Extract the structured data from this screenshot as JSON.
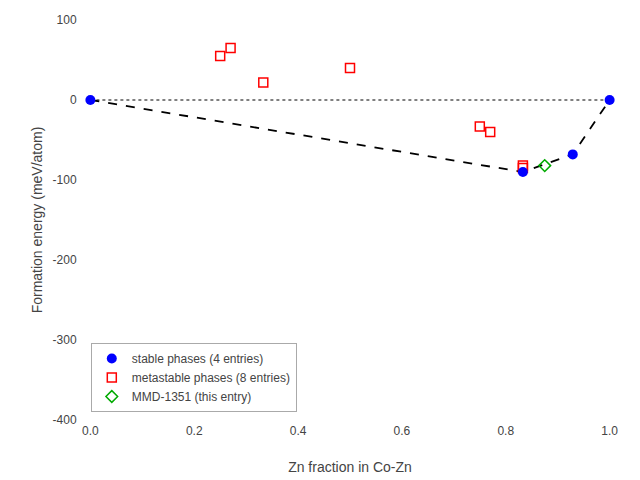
{
  "chart_data": {
    "type": "scatter",
    "xlabel": "Zn fraction in Co-Zn",
    "ylabel": "Formation energy (meV/atom)",
    "xlim": [
      -0.02,
      1.02
    ],
    "ylim": [
      -400,
      100
    ],
    "xticks": [
      {
        "value": 0.0,
        "label": "0.0"
      },
      0.2,
      0.4,
      0.6,
      0.8,
      {
        "value": 1.0,
        "label": "1.0"
      }
    ],
    "yticks": [
      -400,
      -300,
      -200,
      -100,
      0,
      100
    ],
    "grid": false,
    "legend": "lower left",
    "series": [
      {
        "name": "stable phases (4 entries)",
        "type": "scatter",
        "marker": "circle",
        "color": "#0000ff",
        "x": [
          0.0,
          0.833,
          0.929,
          1.0
        ],
        "values": [
          0.0,
          -90.0,
          -68.0,
          0.0
        ]
      },
      {
        "name": "metastable phases (8 entries)",
        "type": "scatter",
        "marker": "square-open",
        "color": "#ff0000",
        "x": [
          0.25,
          0.27,
          0.333,
          0.5,
          0.75,
          0.77,
          0.833,
          0.833
        ],
        "values": [
          55.0,
          65.0,
          22.0,
          40.0,
          -33.0,
          -40.0,
          -85.0,
          -82.0
        ]
      },
      {
        "name": "MMD-1351 (this entry)",
        "type": "scatter",
        "marker": "diamond-open",
        "color": "#00aa00",
        "x": [
          0.875
        ],
        "values": [
          -82.0
        ]
      },
      {
        "type": "line",
        "line_style": "dashed",
        "color": "#000000",
        "x": [
          0.0,
          0.833,
          0.929,
          1.0
        ],
        "values": [
          0.0,
          -90.0,
          -68.0,
          0.0
        ]
      },
      {
        "type": "line",
        "line_style": "dotted",
        "color": "gray",
        "x": [
          0.0,
          1.0
        ],
        "values": [
          0.0,
          0.0
        ]
      }
    ]
  }
}
